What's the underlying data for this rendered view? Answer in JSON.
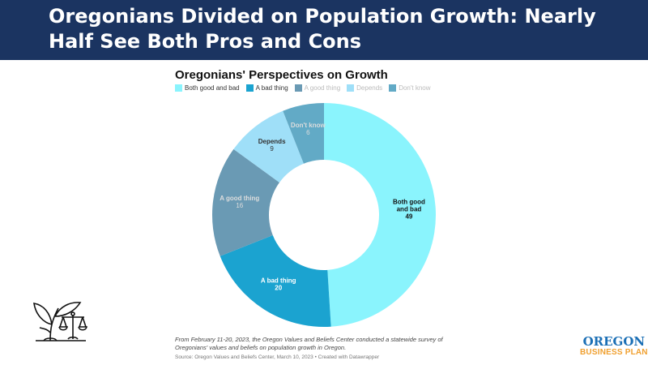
{
  "header": {
    "title": "Oregonians Divided on Population Growth: Nearly Half See Both Pros and Cons"
  },
  "chart_data": {
    "type": "pie",
    "donut": true,
    "title": "Oregonians' Perspectives on Growth",
    "categories": [
      "Both good and bad",
      "A bad thing",
      "A good thing",
      "Depends",
      "Don't know"
    ],
    "values": [
      49,
      20,
      16,
      9,
      6
    ],
    "colors": [
      "#8af4fd",
      "#1ba3d0",
      "#6a9ab4",
      "#9fdff8",
      "#62aac6"
    ],
    "label_colors": [
      "#111111",
      "#ffffff",
      "#dddddd",
      "#333333",
      "#dddddd"
    ],
    "legend_text_colors": [
      "#333333",
      "#333333",
      "#bbbbbb",
      "#bbbbbb",
      "#bbbbbb"
    ],
    "legend": "top-left"
  },
  "footer": {
    "note": "From February 11-20, 2023, the Oregon Values and Beliefs Center conducted a statewide survey of Oregonians' values and beliefs on population growth in Oregon.",
    "source": "Source: Oregon Values and Beliefs Center, March 10, 2023 • Created with Datawrapper"
  },
  "logo": {
    "line1": "OREGON",
    "line2": "BUSINESS PLAN"
  }
}
